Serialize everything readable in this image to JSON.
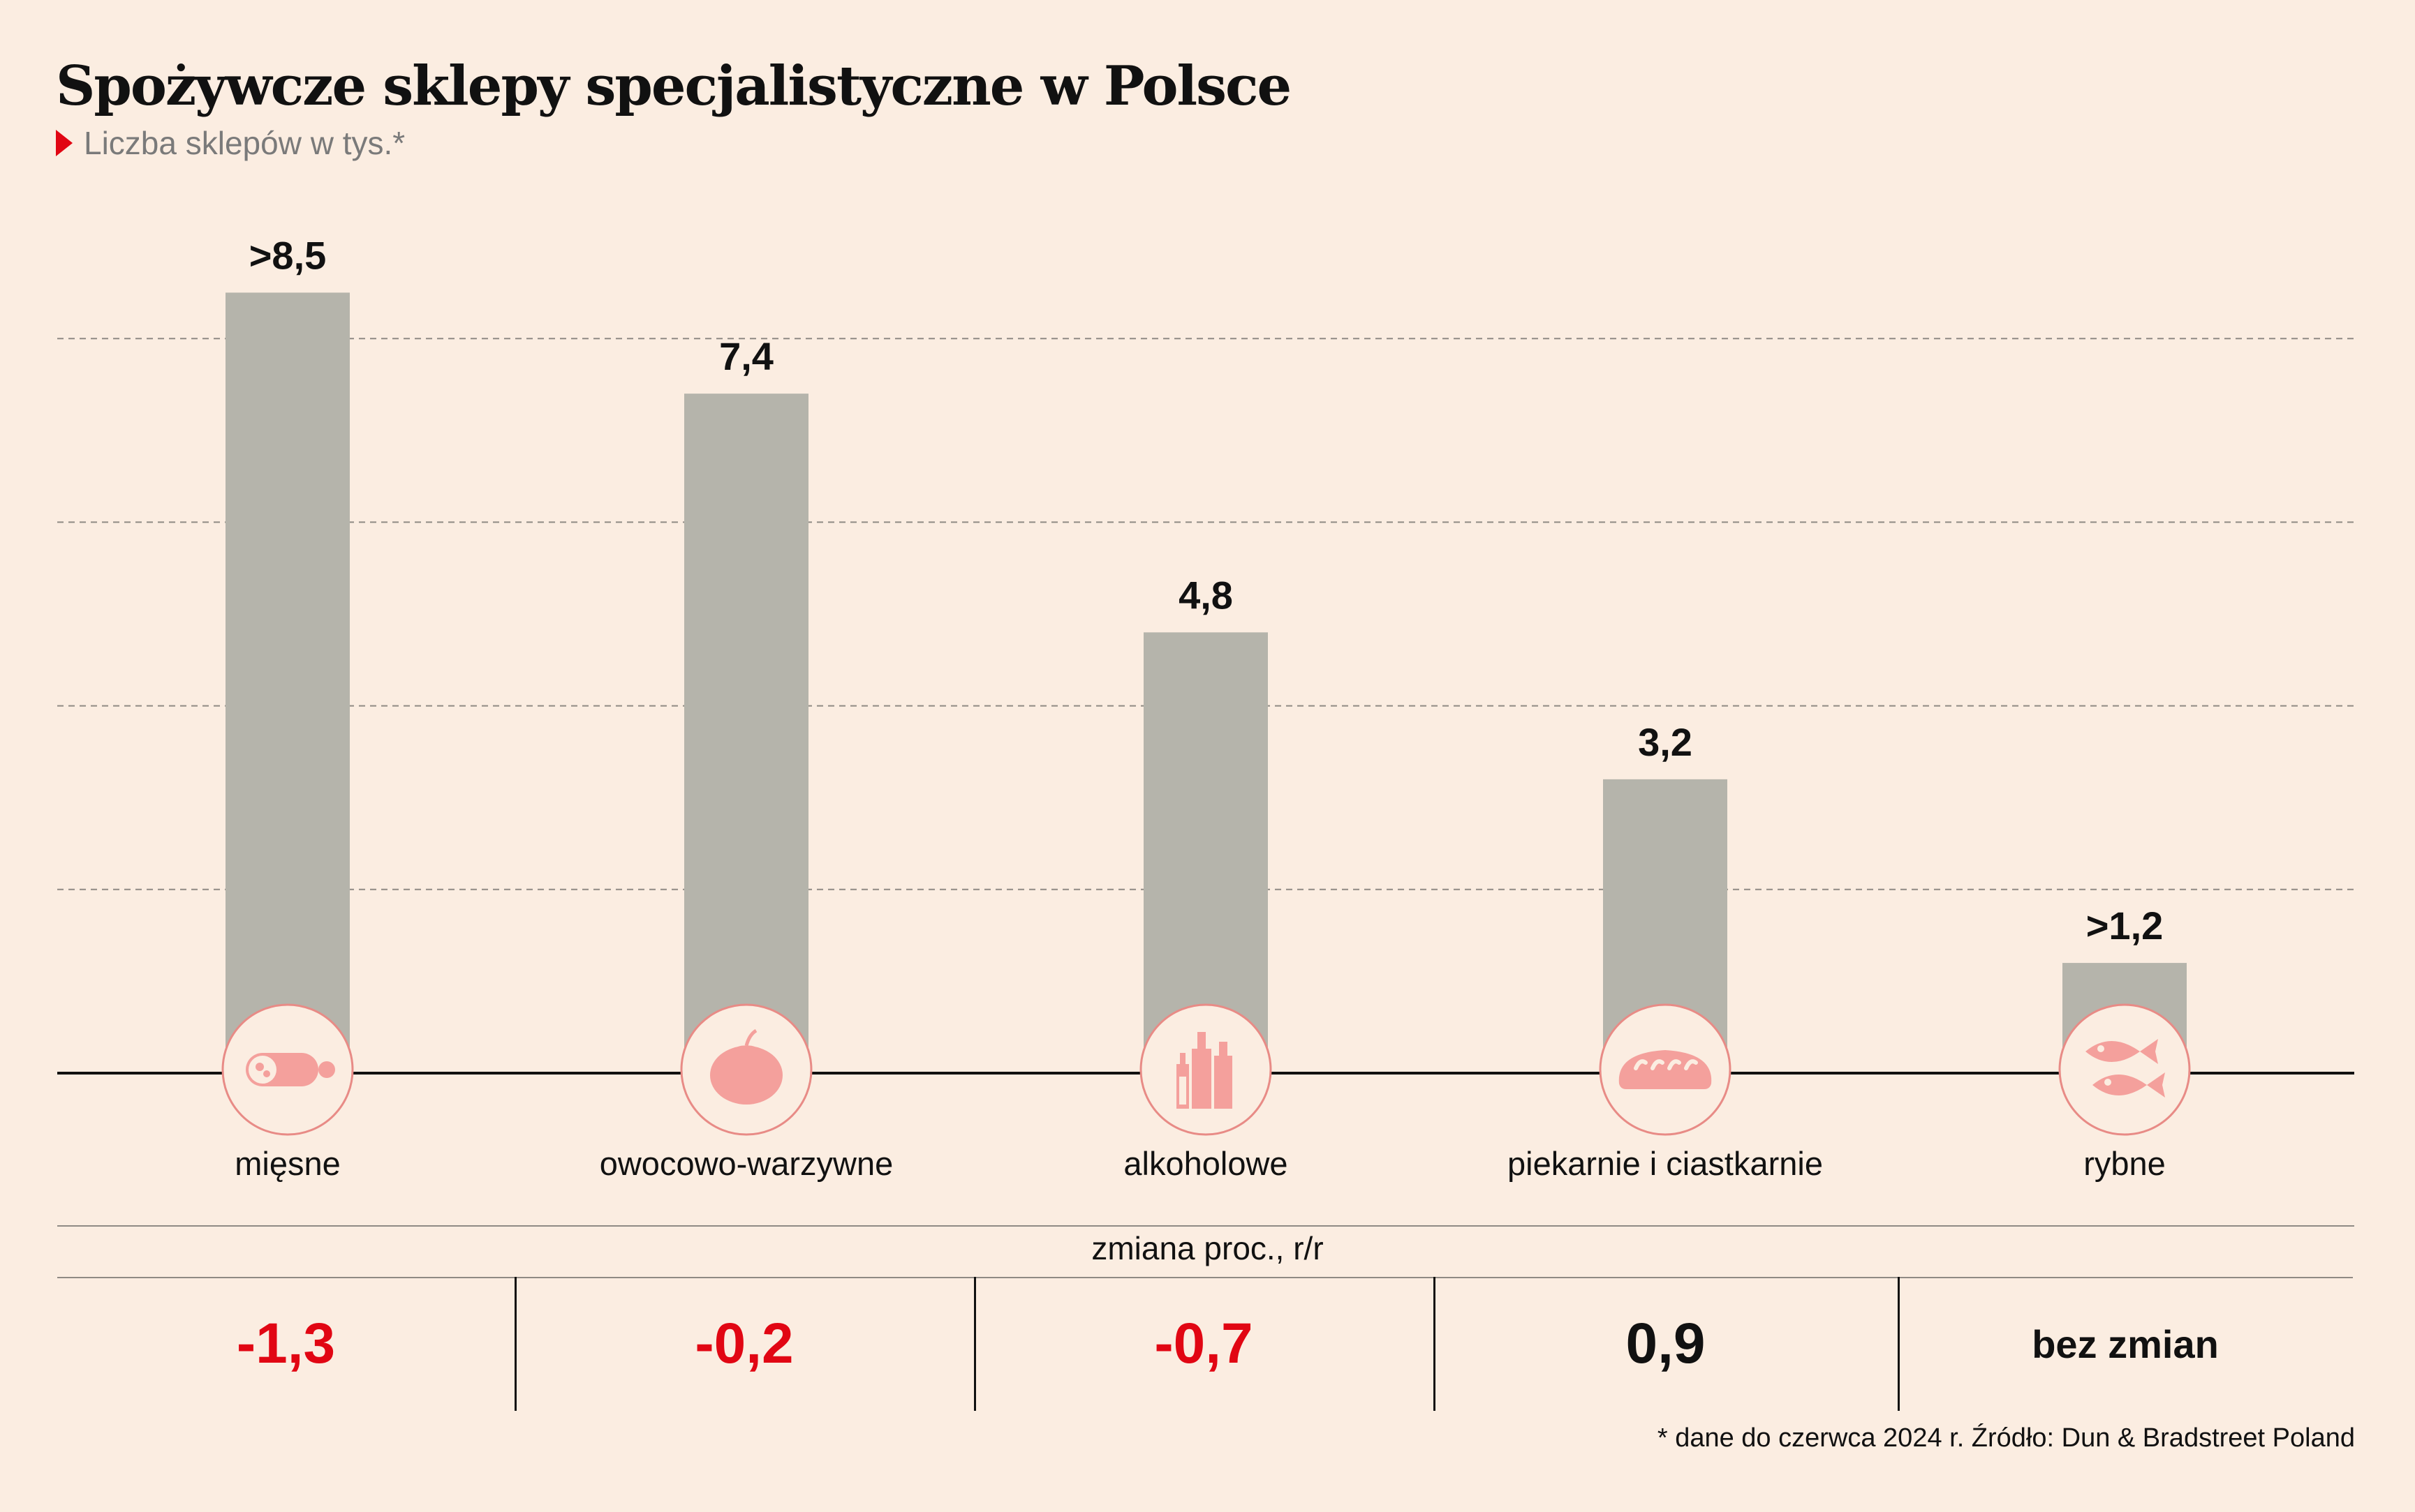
{
  "title": "Spożywcze sklepy specjalistyczne w Polsce",
  "subtitle": "Liczba sklepów w tys.*",
  "colors": {
    "background": "#fbede1",
    "bar": "#b5b4ab",
    "icon_fill": "#f4a09c",
    "icon_stroke": "#e88b86",
    "negative": "#e10613",
    "marker": "#e10613"
  },
  "chart_data": {
    "type": "bar",
    "categories": [
      "mięsne",
      "owocowo-warzywne",
      "alkoholowe",
      "piekarnie i ciastkarnie",
      "rybne"
    ],
    "values": [
      8.5,
      7.4,
      4.8,
      3.2,
      1.2
    ],
    "value_labels": [
      ">8,5",
      "7,4",
      "4,8",
      "3,2",
      ">1,2"
    ],
    "icons": [
      "sausage-icon",
      "tomato-icon",
      "bottles-icon",
      "bread-icon",
      "fish-icon"
    ],
    "ylim": [
      0,
      10
    ],
    "grid": true,
    "gridline_values": [
      2,
      4,
      6,
      8
    ]
  },
  "change": {
    "title": "zmiana proc., r/r",
    "values": [
      "-1,3",
      "-0,2",
      "-0,7",
      "0,9",
      "bez zmian"
    ],
    "styles": [
      "neg",
      "neg",
      "neg",
      "pos",
      "neutral"
    ]
  },
  "footnote": "* dane do czerwca 2024 r. Źródło: Dun & Bradstreet Poland"
}
